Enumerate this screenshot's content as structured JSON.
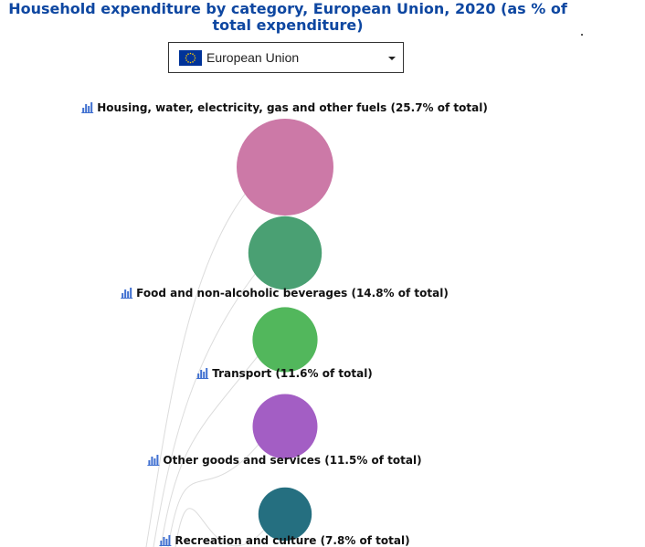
{
  "title": "Household expenditure by category, European Union, 2020 (as % of total expenditure)",
  "selector": {
    "selected": "European Union",
    "flag_icon": "eu-flag-icon"
  },
  "colors": {
    "title": "#0e47a1",
    "eu_flag_blue": "#003399",
    "eu_flag_stars": "#ffcc00",
    "chart_icon": "#3f6fd0"
  },
  "chart_data": {
    "type": "bubble",
    "title": "Household expenditure by category, European Union, 2020 (as % of total expenditure)",
    "unit": "% of total",
    "categories": [
      "Housing, water, electricity, gas and other fuels",
      "Food and non-alcoholic beverages",
      "Transport",
      "Other goods and services",
      "Recreation and culture"
    ],
    "values": [
      25.7,
      14.8,
      11.6,
      11.5,
      7.8
    ],
    "labels": [
      "Housing, water, electricity, gas and other fuels (25.7% of total)",
      "Food and non-alcoholic beverages (14.8% of total)",
      "Transport (11.6% of total)",
      "Other goods and services (11.5% of total)",
      "Recreation and culture (7.8% of total)"
    ],
    "colors": [
      "#cc79a7",
      "#4aa073",
      "#52b75c",
      "#a35ec4",
      "#256f80"
    ],
    "label_icon": "bar-chart-icon"
  }
}
